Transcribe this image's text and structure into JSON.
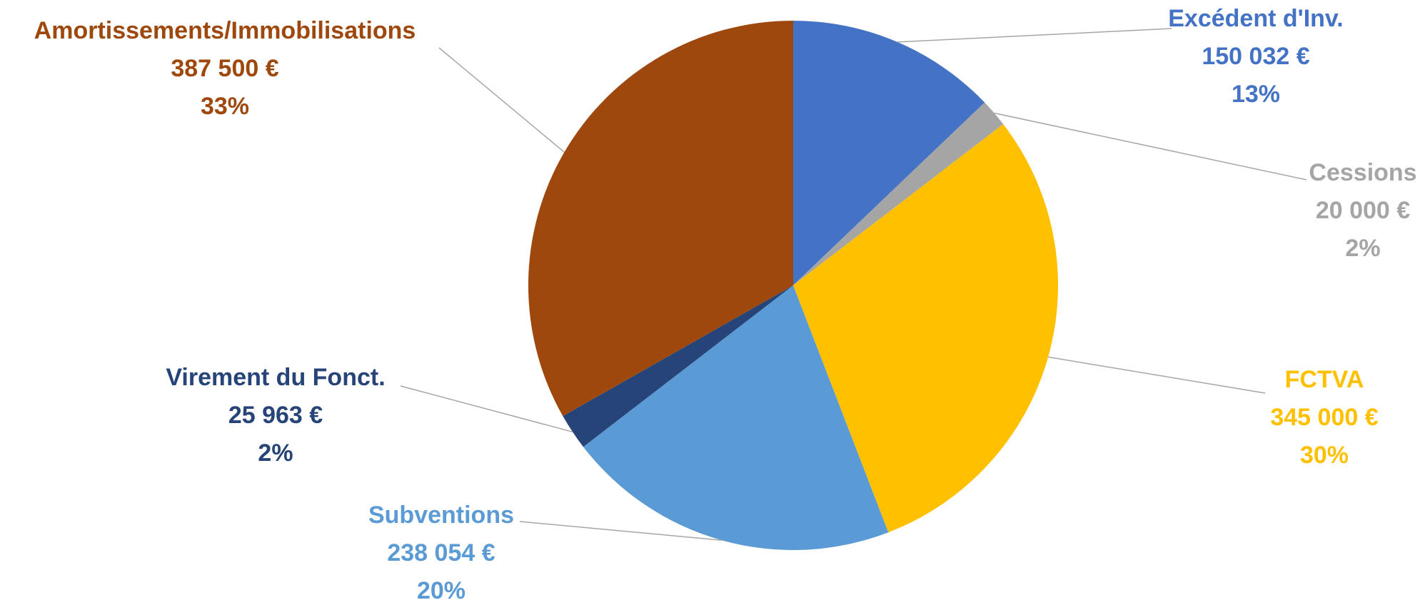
{
  "chart_data": {
    "type": "pie",
    "title": "",
    "start_angle_deg": 0,
    "direction": "clockwise",
    "slices": [
      {
        "name": "Excédent d'Inv.",
        "value": 150032,
        "value_label": "150 032 €",
        "percent_label": "13%",
        "color": "#4472C4"
      },
      {
        "name": "Cessions",
        "value": 20000,
        "value_label": "20 000 €",
        "percent_label": "2%",
        "color": "#A5A5A5"
      },
      {
        "name": "FCTVA",
        "value": 345000,
        "value_label": "345 000 €",
        "percent_label": "30%",
        "color": "#FFC000"
      },
      {
        "name": "Subventions",
        "value": 238054,
        "value_label": "238 054 €",
        "percent_label": "20%",
        "color": "#5B9BD5"
      },
      {
        "name": "Virement du Fonct.",
        "value": 25963,
        "value_label": "25 963 €",
        "percent_label": "2%",
        "color": "#264478"
      },
      {
        "name": "Amortissements/Immobilisations",
        "value": 387500,
        "value_label": "387 500 €",
        "percent_label": "33%",
        "color": "#9E480E"
      }
    ],
    "legend": "none",
    "leader_line_color": "#A6A6A6"
  }
}
